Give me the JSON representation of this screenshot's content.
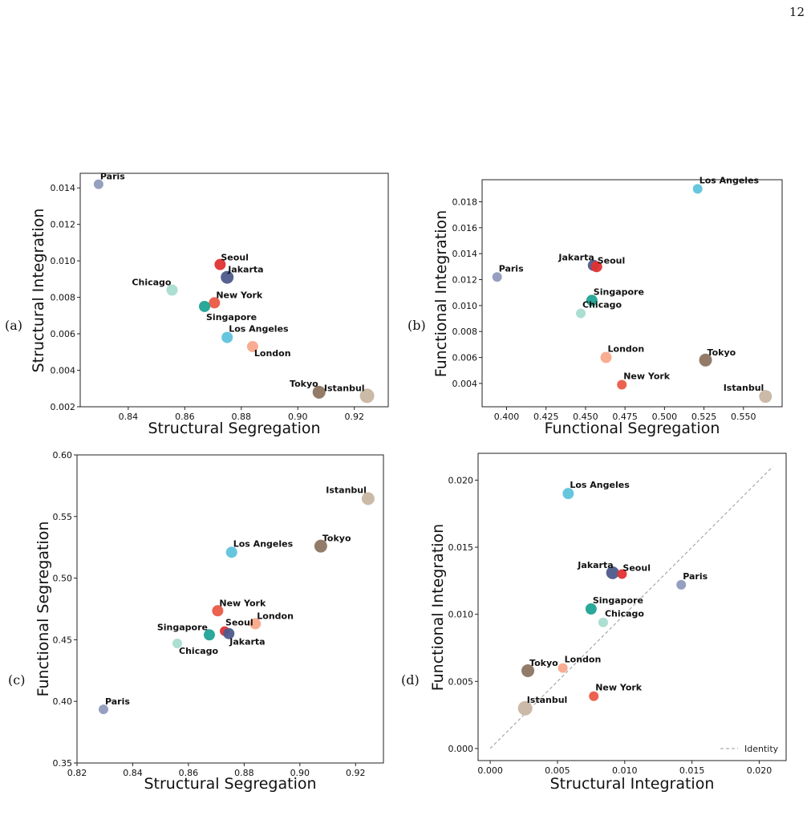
{
  "page": {
    "number": "12"
  },
  "chart_data": [
    {
      "panel": "(a)",
      "type": "scatter",
      "xlabel": "Structural Segregation",
      "ylabel": "Structural Integration",
      "xlim": [
        0.823,
        0.932
      ],
      "ylim": [
        0.002,
        0.0148
      ],
      "xticks": [
        0.84,
        0.86,
        0.88,
        0.9,
        0.92
      ],
      "xtick_labels": [
        "0.84",
        "0.86",
        "0.88",
        "0.90",
        "0.92"
      ],
      "yticks": [
        0.002,
        0.004,
        0.006,
        0.008,
        0.01,
        0.012,
        0.014
      ],
      "ytick_labels": [
        "0.002",
        "0.004",
        "0.006",
        "0.008",
        "0.010",
        "0.012",
        "0.014"
      ],
      "points": [
        {
          "name": "Paris",
          "x": 0.8295,
          "y": 0.0142,
          "color": "#8f9bbd",
          "size": 6
        },
        {
          "name": "Seoul",
          "x": 0.8725,
          "y": 0.0098,
          "color": "#e03131",
          "size": 7
        },
        {
          "name": "Jakarta",
          "x": 0.875,
          "y": 0.0091,
          "color": "#4d5a8c",
          "size": 8
        },
        {
          "name": "Chicago",
          "x": 0.8555,
          "y": 0.0084,
          "color": "#a8dccf",
          "size": 7
        },
        {
          "name": "New York",
          "x": 0.8705,
          "y": 0.0077,
          "color": "#ea5a47",
          "size": 7
        },
        {
          "name": "Singapore",
          "x": 0.867,
          "y": 0.0075,
          "color": "#1fa394",
          "size": 7
        },
        {
          "name": "Los Angeles",
          "x": 0.875,
          "y": 0.0058,
          "color": "#5ec3dc",
          "size": 7
        },
        {
          "name": "London",
          "x": 0.884,
          "y": 0.0053,
          "color": "#f8a98c",
          "size": 7
        },
        {
          "name": "Tokyo",
          "x": 0.9075,
          "y": 0.0028,
          "color": "#8c7561",
          "size": 8
        },
        {
          "name": "Istanbul",
          "x": 0.9245,
          "y": 0.0026,
          "color": "#c7b6a2",
          "size": 9
        }
      ]
    },
    {
      "panel": "(b)",
      "type": "scatter",
      "xlabel": "Functional Segregation",
      "ylabel": "Functional Integration",
      "xlim": [
        0.3845,
        0.5745
      ],
      "ylim": [
        0.0022,
        0.0197
      ],
      "xticks": [
        0.4,
        0.425,
        0.45,
        0.475,
        0.5,
        0.525,
        0.55
      ],
      "xtick_labels": [
        "0.400",
        "0.425",
        "0.450",
        "0.475",
        "0.500",
        "0.525",
        "0.550"
      ],
      "yticks": [
        0.004,
        0.006,
        0.008,
        0.01,
        0.012,
        0.014,
        0.016,
        0.018
      ],
      "ytick_labels": [
        "0.004",
        "0.006",
        "0.008",
        "0.010",
        "0.012",
        "0.014",
        "0.016",
        "0.018"
      ],
      "points": [
        {
          "name": "Los Angeles",
          "x": 0.521,
          "y": 0.019,
          "color": "#5ec3dc",
          "size": 6
        },
        {
          "name": "Jakarta",
          "x": 0.455,
          "y": 0.0131,
          "color": "#4d5a8c",
          "size": 7
        },
        {
          "name": "Seoul",
          "x": 0.457,
          "y": 0.013,
          "color": "#e03131",
          "size": 7
        },
        {
          "name": "Paris",
          "x": 0.394,
          "y": 0.0122,
          "color": "#8f9bbd",
          "size": 6
        },
        {
          "name": "Singapore",
          "x": 0.454,
          "y": 0.0104,
          "color": "#1fa394",
          "size": 7
        },
        {
          "name": "Chicago",
          "x": 0.447,
          "y": 0.0094,
          "color": "#a8dccf",
          "size": 6
        },
        {
          "name": "London",
          "x": 0.463,
          "y": 0.006,
          "color": "#f8a98c",
          "size": 7
        },
        {
          "name": "Tokyo",
          "x": 0.526,
          "y": 0.0058,
          "color": "#8c7561",
          "size": 8
        },
        {
          "name": "New York",
          "x": 0.473,
          "y": 0.0039,
          "color": "#ea5a47",
          "size": 6
        },
        {
          "name": "Istanbul",
          "x": 0.564,
          "y": 0.003,
          "color": "#c7b6a2",
          "size": 8
        }
      ]
    },
    {
      "panel": "(c)",
      "type": "scatter",
      "xlabel": "Structural Segregation",
      "ylabel": "Functional Segregation",
      "xlim": [
        0.82,
        0.93
      ],
      "ylim": [
        0.35,
        0.6
      ],
      "xticks": [
        0.82,
        0.84,
        0.86,
        0.88,
        0.9,
        0.92
      ],
      "xtick_labels": [
        "0.82",
        "0.84",
        "0.86",
        "0.88",
        "0.90",
        "0.92"
      ],
      "yticks": [
        0.35,
        0.4,
        0.45,
        0.5,
        0.55,
        0.6
      ],
      "ytick_labels": [
        "0.35",
        "0.40",
        "0.45",
        "0.50",
        "0.55",
        "0.60"
      ],
      "points": [
        {
          "name": "Istanbul",
          "x": 0.9245,
          "y": 0.5645,
          "color": "#c7b6a2",
          "size": 8
        },
        {
          "name": "Tokyo",
          "x": 0.9075,
          "y": 0.526,
          "color": "#8c7561",
          "size": 8
        },
        {
          "name": "Los Angeles",
          "x": 0.8755,
          "y": 0.521,
          "color": "#5ec3dc",
          "size": 7
        },
        {
          "name": "New York",
          "x": 0.8705,
          "y": 0.4735,
          "color": "#ea5a47",
          "size": 7
        },
        {
          "name": "London",
          "x": 0.884,
          "y": 0.463,
          "color": "#f8a98c",
          "size": 7
        },
        {
          "name": "Seoul",
          "x": 0.873,
          "y": 0.457,
          "color": "#e03131",
          "size": 6
        },
        {
          "name": "Jakarta",
          "x": 0.8745,
          "y": 0.455,
          "color": "#4d5a8c",
          "size": 7
        },
        {
          "name": "Singapore",
          "x": 0.8675,
          "y": 0.454,
          "color": "#1fa394",
          "size": 7
        },
        {
          "name": "Chicago",
          "x": 0.856,
          "y": 0.447,
          "color": "#a8dccf",
          "size": 6
        },
        {
          "name": "Paris",
          "x": 0.8295,
          "y": 0.3935,
          "color": "#8f9bbd",
          "size": 6
        }
      ]
    },
    {
      "panel": "(d)",
      "type": "scatter",
      "xlabel": "Structural Integration",
      "ylabel": "Functional Integration",
      "xlim": [
        -0.0009,
        0.022
      ],
      "ylim": [
        -0.0009,
        0.022
      ],
      "xticks": [
        0.0,
        0.005,
        0.01,
        0.015,
        0.02
      ],
      "xtick_labels": [
        "0.000",
        "0.005",
        "0.010",
        "0.015",
        "0.020"
      ],
      "yticks": [
        0.0,
        0.005,
        0.01,
        0.015,
        0.02
      ],
      "ytick_labels": [
        "0.000",
        "0.005",
        "0.010",
        "0.015",
        "0.020"
      ],
      "identity_line": {
        "from": [
          0.0,
          0.0
        ],
        "to": [
          0.021,
          0.021
        ],
        "legend": "Identity",
        "legend_loc": "lower-right"
      },
      "points": [
        {
          "name": "Los Angeles",
          "x": 0.0058,
          "y": 0.019,
          "color": "#5ec3dc",
          "size": 7
        },
        {
          "name": "Jakarta",
          "x": 0.0091,
          "y": 0.0131,
          "color": "#4d5a8c",
          "size": 8
        },
        {
          "name": "Seoul",
          "x": 0.0098,
          "y": 0.013,
          "color": "#e03131",
          "size": 6
        },
        {
          "name": "Paris",
          "x": 0.0142,
          "y": 0.0122,
          "color": "#8f9bbd",
          "size": 6
        },
        {
          "name": "Singapore",
          "x": 0.0075,
          "y": 0.0104,
          "color": "#1fa394",
          "size": 7
        },
        {
          "name": "Chicago",
          "x": 0.0084,
          "y": 0.0094,
          "color": "#a8dccf",
          "size": 6
        },
        {
          "name": "Tokyo",
          "x": 0.0028,
          "y": 0.0058,
          "color": "#8c7561",
          "size": 8
        },
        {
          "name": "London",
          "x": 0.0054,
          "y": 0.006,
          "color": "#f8a98c",
          "size": 6
        },
        {
          "name": "New York",
          "x": 0.0077,
          "y": 0.0039,
          "color": "#ea5a47",
          "size": 6
        },
        {
          "name": "Istanbul",
          "x": 0.0026,
          "y": 0.003,
          "color": "#c7b6a2",
          "size": 9
        }
      ]
    }
  ]
}
